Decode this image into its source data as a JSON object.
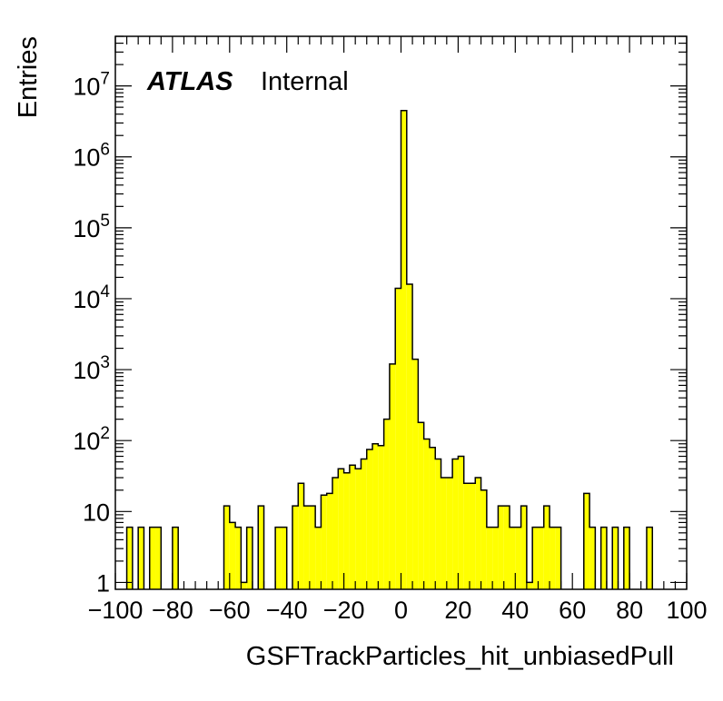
{
  "chart_data": {
    "type": "bar",
    "title": "",
    "xlabel": "GSFTrackParticles_hit_unbiasedPull",
    "ylabel": "Entries",
    "xlim": [
      -100,
      100
    ],
    "ylim": [
      0.8,
      50000000
    ],
    "yscale": "log",
    "bin_width": 2,
    "x_ticks": [
      "−100",
      "−80",
      "−60",
      "−40",
      "−20",
      "0",
      "20",
      "40",
      "60",
      "80",
      "100"
    ],
    "y_ticks": [
      {
        "base": "1",
        "exp": ""
      },
      {
        "base": "10",
        "exp": ""
      },
      {
        "base": "10",
        "exp": "2"
      },
      {
        "base": "10",
        "exp": "3"
      },
      {
        "base": "10",
        "exp": "4"
      },
      {
        "base": "10",
        "exp": "5"
      },
      {
        "base": "10",
        "exp": "6"
      },
      {
        "base": "10",
        "exp": "7"
      }
    ],
    "fill_color": "#ffff00",
    "edge_color": "#000000",
    "grid": false,
    "label": {
      "atlas": "ATLAS",
      "status": "Internal"
    },
    "bins": [
      [
        -96,
        6
      ],
      [
        -92,
        6
      ],
      [
        -88,
        6
      ],
      [
        -86,
        6
      ],
      [
        -80,
        6
      ],
      [
        -62,
        12
      ],
      [
        -60,
        7
      ],
      [
        -58,
        6
      ],
      [
        -56,
        1
      ],
      [
        -54,
        6
      ],
      [
        -50,
        12
      ],
      [
        -44,
        6
      ],
      [
        -42,
        6
      ],
      [
        -38,
        12
      ],
      [
        -36,
        25
      ],
      [
        -34,
        12
      ],
      [
        -32,
        12
      ],
      [
        -30,
        6
      ],
      [
        -28,
        17
      ],
      [
        -26,
        18
      ],
      [
        -24,
        30
      ],
      [
        -22,
        40
      ],
      [
        -20,
        35
      ],
      [
        -18,
        45
      ],
      [
        -16,
        40
      ],
      [
        -14,
        55
      ],
      [
        -12,
        75
      ],
      [
        -10,
        90
      ],
      [
        -8,
        85
      ],
      [
        -6,
        200
      ],
      [
        -4,
        1200
      ],
      [
        -2,
        14000
      ],
      [
        0,
        4500000
      ],
      [
        2,
        16000
      ],
      [
        4,
        1400
      ],
      [
        6,
        180
      ],
      [
        8,
        105
      ],
      [
        10,
        80
      ],
      [
        12,
        55
      ],
      [
        14,
        30
      ],
      [
        16,
        30
      ],
      [
        18,
        55
      ],
      [
        20,
        60
      ],
      [
        22,
        25
      ],
      [
        24,
        25
      ],
      [
        26,
        30
      ],
      [
        28,
        20
      ],
      [
        30,
        6
      ],
      [
        32,
        6
      ],
      [
        34,
        12
      ],
      [
        36,
        12
      ],
      [
        38,
        6
      ],
      [
        40,
        6
      ],
      [
        42,
        12
      ],
      [
        44,
        1
      ],
      [
        46,
        6
      ],
      [
        48,
        6
      ],
      [
        50,
        12
      ],
      [
        52,
        6
      ],
      [
        54,
        6
      ],
      [
        64,
        18
      ],
      [
        66,
        6
      ],
      [
        70,
        6
      ],
      [
        74,
        6
      ],
      [
        78,
        6
      ],
      [
        86,
        6
      ]
    ]
  }
}
